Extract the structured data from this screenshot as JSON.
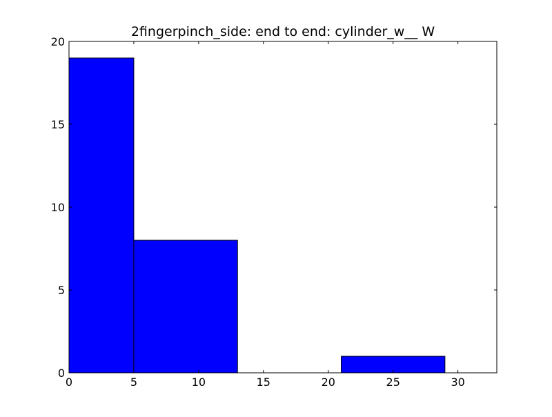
{
  "chart_data": {
    "type": "bar",
    "title": "2fingerpinch_side: end to end: cylinder_w__ W",
    "xlabel": "",
    "ylabel": "",
    "xlim": [
      0,
      33
    ],
    "ylim": [
      0,
      20
    ],
    "xticks": [
      0,
      5,
      10,
      15,
      20,
      25,
      30
    ],
    "yticks": [
      0,
      5,
      10,
      15,
      20
    ],
    "bins": [
      {
        "x_start": 0,
        "x_end": 5,
        "value": 19
      },
      {
        "x_start": 5,
        "x_end": 13,
        "value": 8
      },
      {
        "x_start": 13,
        "x_end": 21,
        "value": 0
      },
      {
        "x_start": 21,
        "x_end": 29,
        "value": 1
      }
    ],
    "grid": false,
    "legend": "none",
    "colors": {
      "bar_fill": "#0000ff",
      "bar_edge": "#000000",
      "axes_edge": "#000000",
      "background": "#ffffff"
    }
  }
}
